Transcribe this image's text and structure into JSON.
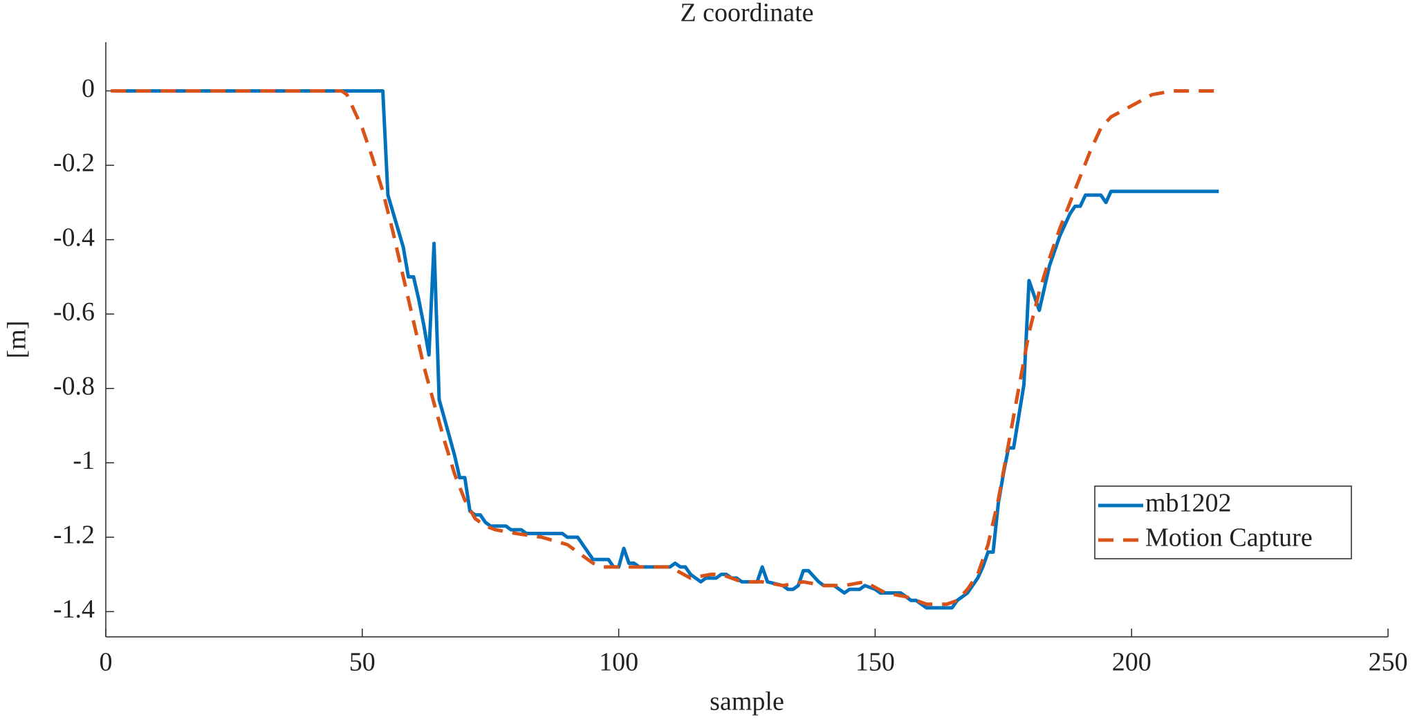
{
  "chart_data": {
    "type": "line",
    "title": "Z coordinate",
    "x_label": "sample",
    "y_label": "[m]",
    "xlim": [
      0,
      250
    ],
    "xticks": [
      0,
      50,
      100,
      150,
      200,
      250
    ],
    "ylim": [
      -1.468,
      0.131
    ],
    "yticks": [
      0,
      -0.2,
      -0.4,
      -0.6,
      -0.8,
      -1,
      -1.2,
      -1.4
    ],
    "grid": false,
    "legend": "southeast",
    "series": [
      {
        "name": "mb1202",
        "color": "#0072bd",
        "dash": "solid",
        "x": [
          1,
          54,
          55,
          58,
          59,
          60,
          61,
          62,
          63,
          64,
          65,
          66,
          67,
          68,
          69,
          70,
          71,
          72,
          73,
          74,
          75,
          78,
          79,
          81,
          82,
          89,
          90,
          92,
          94,
          95,
          98,
          99,
          100,
          101,
          102,
          103,
          104,
          110,
          111,
          112,
          113,
          114,
          116,
          117,
          119,
          120,
          121,
          122,
          123,
          124,
          127,
          128,
          129,
          132,
          133,
          134,
          135,
          136,
          137,
          139,
          140,
          142,
          144,
          145,
          147,
          148,
          150,
          151,
          155,
          157,
          158,
          160,
          165,
          166,
          168,
          170,
          171,
          172,
          173,
          174,
          175,
          176,
          177,
          179,
          180,
          182,
          184,
          186,
          188,
          189,
          190,
          191,
          194,
          195,
          196,
          217
        ],
        "values": [
          0,
          0,
          -0.28,
          -0.42,
          -0.5,
          -0.5,
          -0.56,
          -0.63,
          -0.71,
          -0.41,
          -0.83,
          -0.88,
          -0.93,
          -0.98,
          -1.04,
          -1.04,
          -1.13,
          -1.14,
          -1.14,
          -1.16,
          -1.17,
          -1.17,
          -1.18,
          -1.18,
          -1.19,
          -1.19,
          -1.2,
          -1.2,
          -1.24,
          -1.26,
          -1.26,
          -1.28,
          -1.28,
          -1.23,
          -1.27,
          -1.27,
          -1.28,
          -1.28,
          -1.27,
          -1.28,
          -1.28,
          -1.3,
          -1.32,
          -1.31,
          -1.31,
          -1.3,
          -1.3,
          -1.31,
          -1.31,
          -1.32,
          -1.32,
          -1.28,
          -1.32,
          -1.33,
          -1.34,
          -1.34,
          -1.33,
          -1.29,
          -1.29,
          -1.32,
          -1.33,
          -1.33,
          -1.35,
          -1.34,
          -1.34,
          -1.33,
          -1.34,
          -1.35,
          -1.35,
          -1.37,
          -1.37,
          -1.39,
          -1.39,
          -1.37,
          -1.35,
          -1.31,
          -1.28,
          -1.24,
          -1.24,
          -1.11,
          -1.03,
          -0.96,
          -0.96,
          -0.79,
          -0.51,
          -0.59,
          -0.47,
          -0.39,
          -0.33,
          -0.31,
          -0.31,
          -0.28,
          -0.28,
          -0.3,
          -0.27,
          -0.27
        ]
      },
      {
        "name": "Motion Capture",
        "color": "#d95319",
        "dash": "dashed",
        "x": [
          1,
          46,
          47,
          48,
          50,
          52,
          54,
          56,
          58,
          60,
          62,
          64,
          66,
          68,
          70,
          72,
          74,
          76,
          80,
          85,
          90,
          93,
          95,
          97,
          100,
          104,
          110,
          114,
          118,
          120,
          124,
          128,
          132,
          136,
          140,
          144,
          148,
          152,
          156,
          160,
          164,
          166,
          168,
          170,
          172,
          174,
          176,
          178,
          180,
          182,
          184,
          186,
          188,
          190,
          192,
          194,
          196,
          200,
          204,
          208,
          217
        ],
        "values": [
          0,
          0,
          -0.01,
          -0.04,
          -0.1,
          -0.18,
          -0.27,
          -0.38,
          -0.5,
          -0.62,
          -0.74,
          -0.84,
          -0.94,
          -1.03,
          -1.1,
          -1.15,
          -1.17,
          -1.18,
          -1.19,
          -1.2,
          -1.22,
          -1.25,
          -1.27,
          -1.28,
          -1.28,
          -1.28,
          -1.28,
          -1.31,
          -1.3,
          -1.3,
          -1.32,
          -1.32,
          -1.33,
          -1.32,
          -1.33,
          -1.33,
          -1.32,
          -1.35,
          -1.36,
          -1.38,
          -1.38,
          -1.37,
          -1.34,
          -1.3,
          -1.22,
          -1.1,
          -0.95,
          -0.8,
          -0.65,
          -0.54,
          -0.45,
          -0.37,
          -0.3,
          -0.23,
          -0.16,
          -0.1,
          -0.07,
          -0.04,
          -0.01,
          0,
          0
        ]
      }
    ]
  }
}
